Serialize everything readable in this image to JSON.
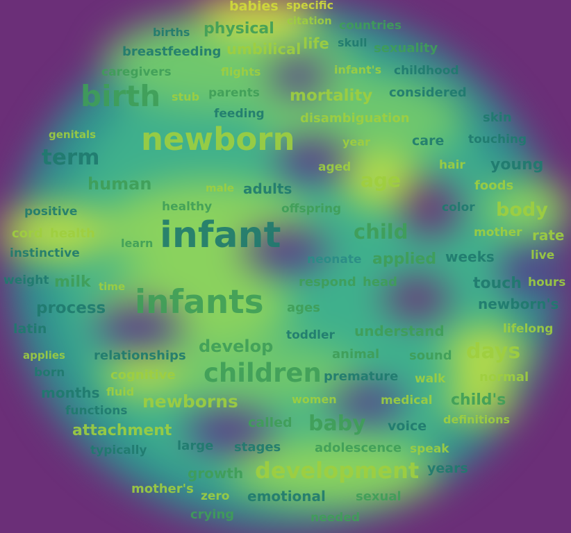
{
  "palette": {
    "background": "#6b2f78",
    "purple": "#6b2f78",
    "teal": "#2f8f8f",
    "mid": "#3fb08c",
    "green": "#7ccf69",
    "yellow": "#d8e23d",
    "text_dark": "#1f7a6e",
    "text_green": "#3f9e58",
    "text_lime": "#9fcf3f",
    "text_yellow": "#d2dc3a",
    "text_teal": "#2a8c86"
  },
  "words": [
    {
      "id": "babies",
      "text": "babies",
      "tone": "text_yellow"
    },
    {
      "id": "specific",
      "text": "specific",
      "tone": "text_yellow"
    },
    {
      "id": "births",
      "text": "births",
      "tone": "text_dark"
    },
    {
      "id": "physical",
      "text": "physical",
      "tone": "text_green"
    },
    {
      "id": "citation",
      "text": "citation",
      "tone": "text_lime"
    },
    {
      "id": "countries",
      "text": "countries",
      "tone": "text_green"
    },
    {
      "id": "breastfeeding",
      "text": "breastfeeding",
      "tone": "text_dark"
    },
    {
      "id": "umbilical",
      "text": "umbilical",
      "tone": "text_lime"
    },
    {
      "id": "life",
      "text": "life",
      "tone": "text_lime"
    },
    {
      "id": "skull",
      "text": "skull",
      "tone": "text_dark"
    },
    {
      "id": "sexuality",
      "text": "sexuality",
      "tone": "text_green"
    },
    {
      "id": "caregivers",
      "text": "caregivers",
      "tone": "text_green"
    },
    {
      "id": "flights",
      "text": "flights",
      "tone": "text_lime"
    },
    {
      "id": "infants-possessive",
      "text": "infant's",
      "tone": "text_lime"
    },
    {
      "id": "childhood",
      "text": "childhood",
      "tone": "text_dark"
    },
    {
      "id": "birth",
      "text": "birth",
      "tone": "text_green"
    },
    {
      "id": "stub",
      "text": "stub",
      "tone": "text_lime"
    },
    {
      "id": "parents",
      "text": "parents",
      "tone": "text_green"
    },
    {
      "id": "mortality",
      "text": "mortality",
      "tone": "text_lime"
    },
    {
      "id": "considered",
      "text": "considered",
      "tone": "text_dark"
    },
    {
      "id": "feeding",
      "text": "feeding",
      "tone": "text_dark"
    },
    {
      "id": "disambiguation",
      "text": "disambiguation",
      "tone": "text_lime"
    },
    {
      "id": "skin",
      "text": "skin",
      "tone": "text_dark"
    },
    {
      "id": "genitals",
      "text": "genitals",
      "tone": "text_lime"
    },
    {
      "id": "newborn",
      "text": "newborn",
      "tone": "text_lime"
    },
    {
      "id": "year",
      "text": "year",
      "tone": "text_lime"
    },
    {
      "id": "care",
      "text": "care",
      "tone": "text_dark"
    },
    {
      "id": "touching",
      "text": "touching",
      "tone": "text_dark"
    },
    {
      "id": "term",
      "text": "term",
      "tone": "text_dark"
    },
    {
      "id": "aged",
      "text": "aged",
      "tone": "text_lime"
    },
    {
      "id": "hair",
      "text": "hair",
      "tone": "text_lime"
    },
    {
      "id": "young",
      "text": "young",
      "tone": "text_dark"
    },
    {
      "id": "human",
      "text": "human",
      "tone": "text_green"
    },
    {
      "id": "male",
      "text": "male",
      "tone": "text_lime"
    },
    {
      "id": "adults",
      "text": "adults",
      "tone": "text_dark"
    },
    {
      "id": "age",
      "text": "age",
      "tone": "text_lime"
    },
    {
      "id": "foods",
      "text": "foods",
      "tone": "text_lime"
    },
    {
      "id": "positive",
      "text": "positive",
      "tone": "text_dark"
    },
    {
      "id": "healthy",
      "text": "healthy",
      "tone": "text_green"
    },
    {
      "id": "offspring",
      "text": "offspring",
      "tone": "text_green"
    },
    {
      "id": "color",
      "text": "color",
      "tone": "text_dark"
    },
    {
      "id": "body",
      "text": "body",
      "tone": "text_lime"
    },
    {
      "id": "cord",
      "text": "cord",
      "tone": "text_lime"
    },
    {
      "id": "health",
      "text": "health",
      "tone": "text_lime"
    },
    {
      "id": "infant",
      "text": "infant",
      "tone": "text_dark"
    },
    {
      "id": "learn",
      "text": "learn",
      "tone": "text_green"
    },
    {
      "id": "child",
      "text": "child",
      "tone": "text_green"
    },
    {
      "id": "mother",
      "text": "mother",
      "tone": "text_lime"
    },
    {
      "id": "rate",
      "text": "rate",
      "tone": "text_lime"
    },
    {
      "id": "instinctive",
      "text": "instinctive",
      "tone": "text_dark"
    },
    {
      "id": "neonate",
      "text": "neonate",
      "tone": "text_teal"
    },
    {
      "id": "applied",
      "text": "applied",
      "tone": "text_green"
    },
    {
      "id": "weeks",
      "text": "weeks",
      "tone": "text_dark"
    },
    {
      "id": "live",
      "text": "live",
      "tone": "text_lime"
    },
    {
      "id": "weight",
      "text": "weight",
      "tone": "text_dark"
    },
    {
      "id": "milk",
      "text": "milk",
      "tone": "text_green"
    },
    {
      "id": "time",
      "text": "time",
      "tone": "text_lime"
    },
    {
      "id": "respond",
      "text": "respond",
      "tone": "text_green"
    },
    {
      "id": "head",
      "text": "head",
      "tone": "text_green"
    },
    {
      "id": "touch",
      "text": "touch",
      "tone": "text_dark"
    },
    {
      "id": "hours",
      "text": "hours",
      "tone": "text_lime"
    },
    {
      "id": "process",
      "text": "process",
      "tone": "text_dark"
    },
    {
      "id": "infants",
      "text": "infants",
      "tone": "text_green"
    },
    {
      "id": "ages",
      "text": "ages",
      "tone": "text_green"
    },
    {
      "id": "newborns-possessive",
      "text": "newborn's",
      "tone": "text_dark"
    },
    {
      "id": "latin",
      "text": "latin",
      "tone": "text_dark"
    },
    {
      "id": "toddler",
      "text": "toddler",
      "tone": "text_dark"
    },
    {
      "id": "understand",
      "text": "understand",
      "tone": "text_green"
    },
    {
      "id": "lifelong",
      "text": "lifelong",
      "tone": "text_lime"
    },
    {
      "id": "develop",
      "text": "develop",
      "tone": "text_green"
    },
    {
      "id": "applies",
      "text": "applies",
      "tone": "text_lime"
    },
    {
      "id": "relationships",
      "text": "relationships",
      "tone": "text_dark"
    },
    {
      "id": "animal",
      "text": "animal",
      "tone": "text_green"
    },
    {
      "id": "sound",
      "text": "sound",
      "tone": "text_green"
    },
    {
      "id": "days",
      "text": "days",
      "tone": "text_lime"
    },
    {
      "id": "born",
      "text": "born",
      "tone": "text_dark"
    },
    {
      "id": "cognitive",
      "text": "cognitive",
      "tone": "text_lime"
    },
    {
      "id": "children",
      "text": "children",
      "tone": "text_green"
    },
    {
      "id": "premature",
      "text": "premature",
      "tone": "text_dark"
    },
    {
      "id": "walk",
      "text": "walk",
      "tone": "text_lime"
    },
    {
      "id": "normal",
      "text": "normal",
      "tone": "text_lime"
    },
    {
      "id": "months",
      "text": "months",
      "tone": "text_dark"
    },
    {
      "id": "fluid",
      "text": "fluid",
      "tone": "text_lime"
    },
    {
      "id": "newborns",
      "text": "newborns",
      "tone": "text_lime"
    },
    {
      "id": "women",
      "text": "women",
      "tone": "text_lime"
    },
    {
      "id": "medical",
      "text": "medical",
      "tone": "text_lime"
    },
    {
      "id": "childs",
      "text": "child's",
      "tone": "text_green"
    },
    {
      "id": "functions",
      "text": "functions",
      "tone": "text_dark"
    },
    {
      "id": "called",
      "text": "called",
      "tone": "text_green"
    },
    {
      "id": "baby",
      "text": "baby",
      "tone": "text_green"
    },
    {
      "id": "voice",
      "text": "voice",
      "tone": "text_dark"
    },
    {
      "id": "definitions",
      "text": "definitions",
      "tone": "text_lime"
    },
    {
      "id": "attachment",
      "text": "attachment",
      "tone": "text_lime"
    },
    {
      "id": "typically",
      "text": "typically",
      "tone": "text_dark"
    },
    {
      "id": "large",
      "text": "large",
      "tone": "text_dark"
    },
    {
      "id": "stages",
      "text": "stages",
      "tone": "text_dark"
    },
    {
      "id": "adolescence",
      "text": "adolescence",
      "tone": "text_green"
    },
    {
      "id": "speak",
      "text": "speak",
      "tone": "text_lime"
    },
    {
      "id": "growth",
      "text": "growth",
      "tone": "text_green"
    },
    {
      "id": "development",
      "text": "development",
      "tone": "text_lime"
    },
    {
      "id": "years",
      "text": "years",
      "tone": "text_dark"
    },
    {
      "id": "mothers",
      "text": "mother's",
      "tone": "text_lime"
    },
    {
      "id": "zero",
      "text": "zero",
      "tone": "text_lime"
    },
    {
      "id": "emotional",
      "text": "emotional",
      "tone": "text_dark"
    },
    {
      "id": "sexual",
      "text": "sexual",
      "tone": "text_green"
    },
    {
      "id": "crying",
      "text": "crying",
      "tone": "text_green"
    },
    {
      "id": "needed",
      "text": "needed",
      "tone": "text_green"
    }
  ]
}
